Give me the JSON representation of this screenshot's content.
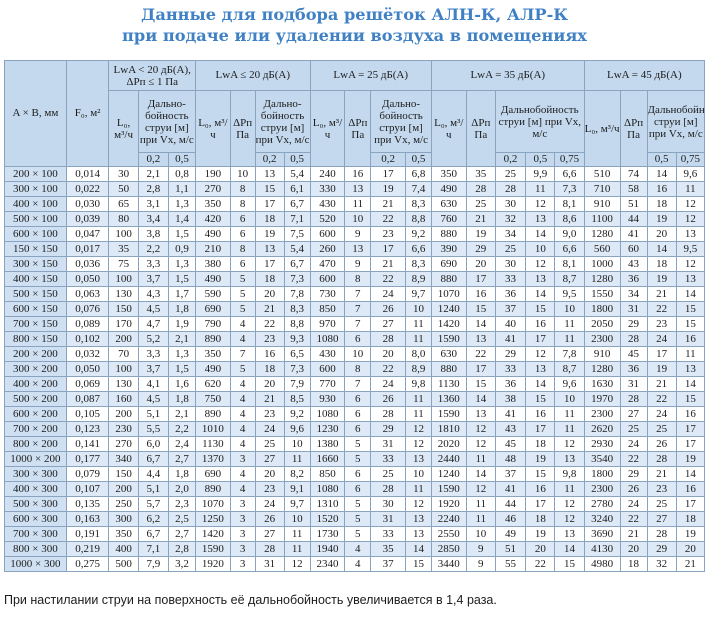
{
  "title": {
    "line1": "Данные для подбора решёток АЛН-К, АЛР-К",
    "line2": "при подаче или удалении воздуха в помещениях"
  },
  "header": {
    "col_size": "A × B, мм",
    "col_f": "F₀, м²",
    "groups": [
      "LwA < 20 дБ(А), ΔPп ≤ 1 Па",
      "LwA ≤ 20 дБ(А)",
      "LwA = 25 дБ(А)",
      "LwA = 35 дБ(А)",
      "LwA = 45 дБ(А)"
    ],
    "l0": "L₀, м³/ч",
    "dp": "ΔPп Па",
    "range_narrow": "Дально-бойность струи [м] при Vх, м/с",
    "range_wide": "Дальнобойность струи [м] при Vх, м/с",
    "v": [
      "0,2",
      "0,5",
      "0,75"
    ]
  },
  "rows": [
    [
      "200 × 100",
      "0,014",
      "30",
      "2,1",
      "0,8",
      "190",
      "10",
      "13",
      "5,4",
      "240",
      "16",
      "17",
      "6,8",
      "350",
      "35",
      "25",
      "9,9",
      "6,6",
      "510",
      "74",
      "14",
      "9,6"
    ],
    [
      "300 × 100",
      "0,022",
      "50",
      "2,8",
      "1,1",
      "270",
      "8",
      "15",
      "6,1",
      "330",
      "13",
      "19",
      "7,4",
      "490",
      "28",
      "28",
      "11",
      "7,3",
      "710",
      "58",
      "16",
      "11"
    ],
    [
      "400 × 100",
      "0,030",
      "65",
      "3,1",
      "1,3",
      "350",
      "8",
      "17",
      "6,7",
      "430",
      "11",
      "21",
      "8,3",
      "630",
      "25",
      "30",
      "12",
      "8,1",
      "910",
      "51",
      "18",
      "12"
    ],
    [
      "500 × 100",
      "0,039",
      "80",
      "3,4",
      "1,4",
      "420",
      "6",
      "18",
      "7,1",
      "520",
      "10",
      "22",
      "8,8",
      "760",
      "21",
      "32",
      "13",
      "8,6",
      "1100",
      "44",
      "19",
      "12"
    ],
    [
      "600 × 100",
      "0,047",
      "100",
      "3,8",
      "1,5",
      "490",
      "6",
      "19",
      "7,5",
      "600",
      "9",
      "23",
      "9,2",
      "880",
      "19",
      "34",
      "14",
      "9,0",
      "1280",
      "41",
      "20",
      "13"
    ],
    [
      "150 × 150",
      "0,017",
      "35",
      "2,2",
      "0,9",
      "210",
      "8",
      "13",
      "5,4",
      "260",
      "13",
      "17",
      "6,6",
      "390",
      "29",
      "25",
      "10",
      "6,6",
      "560",
      "60",
      "14",
      "9,5"
    ],
    [
      "300 × 150",
      "0,036",
      "75",
      "3,3",
      "1,3",
      "380",
      "6",
      "17",
      "6,7",
      "470",
      "9",
      "21",
      "8,3",
      "690",
      "20",
      "30",
      "12",
      "8,1",
      "1000",
      "43",
      "18",
      "12"
    ],
    [
      "400 × 150",
      "0,050",
      "100",
      "3,7",
      "1,5",
      "490",
      "5",
      "18",
      "7,3",
      "600",
      "8",
      "22",
      "8,9",
      "880",
      "17",
      "33",
      "13",
      "8,7",
      "1280",
      "36",
      "19",
      "13"
    ],
    [
      "500 × 150",
      "0,063",
      "130",
      "4,3",
      "1,7",
      "590",
      "5",
      "20",
      "7,8",
      "730",
      "7",
      "24",
      "9,7",
      "1070",
      "16",
      "36",
      "14",
      "9,5",
      "1550",
      "34",
      "21",
      "14"
    ],
    [
      "600 × 150",
      "0,076",
      "150",
      "4,5",
      "1,8",
      "690",
      "5",
      "21",
      "8,3",
      "850",
      "7",
      "26",
      "10",
      "1240",
      "15",
      "37",
      "15",
      "10",
      "1800",
      "31",
      "22",
      "15"
    ],
    [
      "700 × 150",
      "0,089",
      "170",
      "4,7",
      "1,9",
      "790",
      "4",
      "22",
      "8,8",
      "970",
      "7",
      "27",
      "11",
      "1420",
      "14",
      "40",
      "16",
      "11",
      "2050",
      "29",
      "23",
      "15"
    ],
    [
      "800 × 150",
      "0,102",
      "200",
      "5,2",
      "2,1",
      "890",
      "4",
      "23",
      "9,3",
      "1080",
      "6",
      "28",
      "11",
      "1590",
      "13",
      "41",
      "17",
      "11",
      "2300",
      "28",
      "24",
      "16"
    ],
    [
      "200 × 200",
      "0,032",
      "70",
      "3,3",
      "1,3",
      "350",
      "7",
      "16",
      "6,5",
      "430",
      "10",
      "20",
      "8,0",
      "630",
      "22",
      "29",
      "12",
      "7,8",
      "910",
      "45",
      "17",
      "11"
    ],
    [
      "300 × 200",
      "0,050",
      "100",
      "3,7",
      "1,5",
      "490",
      "5",
      "18",
      "7,3",
      "600",
      "8",
      "22",
      "8,9",
      "880",
      "17",
      "33",
      "13",
      "8,7",
      "1280",
      "36",
      "19",
      "13"
    ],
    [
      "400 × 200",
      "0,069",
      "130",
      "4,1",
      "1,6",
      "620",
      "4",
      "20",
      "7,9",
      "770",
      "7",
      "24",
      "9,8",
      "1130",
      "15",
      "36",
      "14",
      "9,6",
      "1630",
      "31",
      "21",
      "14"
    ],
    [
      "500 × 200",
      "0,087",
      "160",
      "4,5",
      "1,8",
      "750",
      "4",
      "21",
      "8,5",
      "930",
      "6",
      "26",
      "11",
      "1360",
      "14",
      "38",
      "15",
      "10",
      "1970",
      "28",
      "22",
      "15"
    ],
    [
      "600 × 200",
      "0,105",
      "200",
      "5,1",
      "2,1",
      "890",
      "4",
      "23",
      "9,2",
      "1080",
      "6",
      "28",
      "11",
      "1590",
      "13",
      "41",
      "16",
      "11",
      "2300",
      "27",
      "24",
      "16"
    ],
    [
      "700 × 200",
      "0,123",
      "230",
      "5,5",
      "2,2",
      "1010",
      "4",
      "24",
      "9,6",
      "1230",
      "6",
      "29",
      "12",
      "1810",
      "12",
      "43",
      "17",
      "11",
      "2620",
      "25",
      "25",
      "17"
    ],
    [
      "800 × 200",
      "0,141",
      "270",
      "6,0",
      "2,4",
      "1130",
      "4",
      "25",
      "10",
      "1380",
      "5",
      "31",
      "12",
      "2020",
      "12",
      "45",
      "18",
      "12",
      "2930",
      "24",
      "26",
      "17"
    ],
    [
      "1000 × 200",
      "0,177",
      "340",
      "6,7",
      "2,7",
      "1370",
      "3",
      "27",
      "11",
      "1660",
      "5",
      "33",
      "13",
      "2440",
      "11",
      "48",
      "19",
      "13",
      "3540",
      "22",
      "28",
      "19"
    ],
    [
      "300 × 300",
      "0,079",
      "150",
      "4,4",
      "1,8",
      "690",
      "4",
      "20",
      "8,2",
      "850",
      "6",
      "25",
      "10",
      "1240",
      "14",
      "37",
      "15",
      "9,8",
      "1800",
      "29",
      "21",
      "14"
    ],
    [
      "400 × 300",
      "0,107",
      "200",
      "5,1",
      "2,0",
      "890",
      "4",
      "23",
      "9,1",
      "1080",
      "6",
      "28",
      "11",
      "1590",
      "12",
      "41",
      "16",
      "11",
      "2300",
      "26",
      "23",
      "16"
    ],
    [
      "500 × 300",
      "0,135",
      "250",
      "5,7",
      "2,3",
      "1070",
      "3",
      "24",
      "9,7",
      "1310",
      "5",
      "30",
      "12",
      "1920",
      "11",
      "44",
      "17",
      "12",
      "2780",
      "24",
      "25",
      "17"
    ],
    [
      "600 × 300",
      "0,163",
      "300",
      "6,2",
      "2,5",
      "1250",
      "3",
      "26",
      "10",
      "1520",
      "5",
      "31",
      "13",
      "2240",
      "11",
      "46",
      "18",
      "12",
      "3240",
      "22",
      "27",
      "18"
    ],
    [
      "700 × 300",
      "0,191",
      "350",
      "6,7",
      "2,7",
      "1420",
      "3",
      "27",
      "11",
      "1730",
      "5",
      "33",
      "13",
      "2550",
      "10",
      "49",
      "19",
      "13",
      "3690",
      "21",
      "28",
      "19"
    ],
    [
      "800 × 300",
      "0,219",
      "400",
      "7,1",
      "2,8",
      "1590",
      "3",
      "28",
      "11",
      "1940",
      "4",
      "35",
      "14",
      "2850",
      "9",
      "51",
      "20",
      "14",
      "4130",
      "20",
      "29",
      "20"
    ],
    [
      "1000 × 300",
      "0,275",
      "500",
      "7,9",
      "3,2",
      "1920",
      "3",
      "31",
      "12",
      "2340",
      "4",
      "37",
      "15",
      "3440",
      "9",
      "55",
      "22",
      "15",
      "4980",
      "18",
      "32",
      "21"
    ]
  ],
  "footnote": "При настилании струи на поверхность её дальнобойность увеличивается в 1,4 раза."
}
